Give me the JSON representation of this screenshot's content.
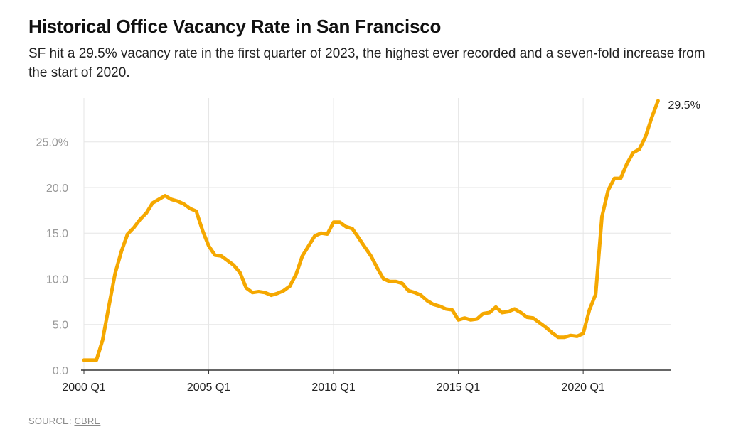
{
  "title": "Historical Office Vacancy Rate in San Francisco",
  "subtitle": "SF hit a 29.5% vacancy rate in the first quarter of 2023, the highest ever recorded and a seven-fold increase from the start of 2020.",
  "source": {
    "label": "SOURCE:",
    "link_text": "CBRE"
  },
  "chart_data": {
    "type": "line",
    "title": "Historical Office Vacancy Rate in San Francisco",
    "xlabel": "",
    "ylabel": "",
    "x_ticks": [
      {
        "x": 2000.0,
        "label": "2000 Q1"
      },
      {
        "x": 2005.0,
        "label": "2005 Q1"
      },
      {
        "x": 2010.0,
        "label": "2010 Q1"
      },
      {
        "x": 2015.0,
        "label": "2015 Q1"
      },
      {
        "x": 2020.0,
        "label": "2020 Q1"
      }
    ],
    "y_ticks": [
      {
        "y": 0,
        "label": "0.0"
      },
      {
        "y": 5,
        "label": "5.0"
      },
      {
        "y": 10,
        "label": "10.0"
      },
      {
        "y": 15,
        "label": "15.0"
      },
      {
        "y": 20,
        "label": "20.0"
      },
      {
        "y": 25,
        "label": "25.0%"
      }
    ],
    "xlim": [
      2000.0,
      2023.5
    ],
    "ylim": [
      0,
      29.8
    ],
    "grid": true,
    "line_color": "#f5a800",
    "end_label": "29.5%",
    "x": [
      2000.0,
      2000.25,
      2000.5,
      2000.75,
      2001.0,
      2001.25,
      2001.5,
      2001.75,
      2002.0,
      2002.25,
      2002.5,
      2002.75,
      2003.0,
      2003.25,
      2003.5,
      2003.75,
      2004.0,
      2004.25,
      2004.5,
      2004.75,
      2005.0,
      2005.25,
      2005.5,
      2005.75,
      2006.0,
      2006.25,
      2006.5,
      2006.75,
      2007.0,
      2007.25,
      2007.5,
      2007.75,
      2008.0,
      2008.25,
      2008.5,
      2008.75,
      2009.0,
      2009.25,
      2009.5,
      2009.75,
      2010.0,
      2010.25,
      2010.5,
      2010.75,
      2011.0,
      2011.25,
      2011.5,
      2011.75,
      2012.0,
      2012.25,
      2012.5,
      2012.75,
      2013.0,
      2013.25,
      2013.5,
      2013.75,
      2014.0,
      2014.25,
      2014.5,
      2014.75,
      2015.0,
      2015.25,
      2015.5,
      2015.75,
      2016.0,
      2016.25,
      2016.5,
      2016.75,
      2017.0,
      2017.25,
      2017.5,
      2017.75,
      2018.0,
      2018.25,
      2018.5,
      2018.75,
      2019.0,
      2019.25,
      2019.5,
      2019.75,
      2020.0,
      2020.25,
      2020.5,
      2020.75,
      2021.0,
      2021.25,
      2021.5,
      2021.75,
      2022.0,
      2022.25,
      2022.5,
      2022.75,
      2023.0
    ],
    "values": [
      1.1,
      1.1,
      1.1,
      3.3,
      7.0,
      10.6,
      13.0,
      14.9,
      15.6,
      16.5,
      17.2,
      18.3,
      18.7,
      19.1,
      18.7,
      18.5,
      18.2,
      17.7,
      17.4,
      15.3,
      13.6,
      12.6,
      12.5,
      12.0,
      11.5,
      10.7,
      9.0,
      8.5,
      8.6,
      8.5,
      8.2,
      8.4,
      8.7,
      9.2,
      10.5,
      12.5,
      13.6,
      14.7,
      15.0,
      14.9,
      16.2,
      16.2,
      15.7,
      15.5,
      14.5,
      13.5,
      12.5,
      11.2,
      10.0,
      9.7,
      9.7,
      9.5,
      8.7,
      8.5,
      8.2,
      7.6,
      7.2,
      7.0,
      6.7,
      6.6,
      5.5,
      5.7,
      5.5,
      5.6,
      6.2,
      6.3,
      6.9,
      6.3,
      6.4,
      6.7,
      6.3,
      5.8,
      5.7,
      5.2,
      4.7,
      4.1,
      3.6,
      3.6,
      3.8,
      3.7,
      4.0,
      6.6,
      8.3,
      16.8,
      19.7,
      21.0,
      21.0,
      22.6,
      23.8,
      24.2,
      25.6,
      27.7,
      29.5
    ]
  }
}
